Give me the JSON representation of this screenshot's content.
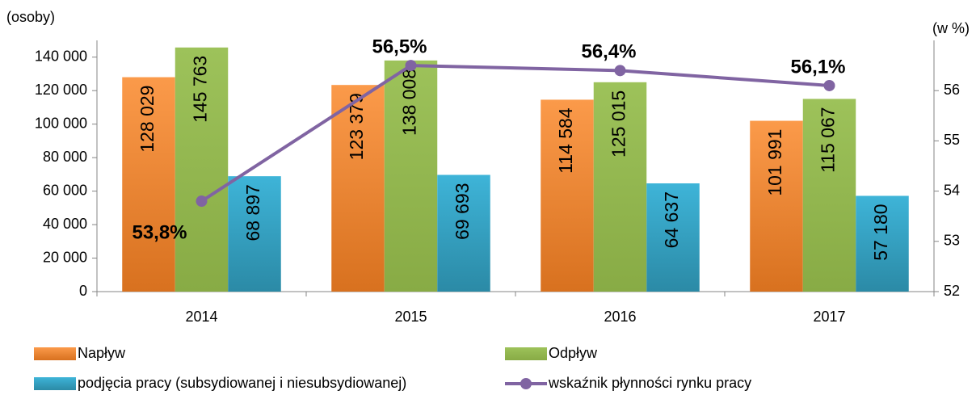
{
  "chart_data": {
    "type": "bar",
    "y_label": "(osoby)",
    "y2_label": "(w %)",
    "categories": [
      "2014",
      "2015",
      "2016",
      "2017"
    ],
    "series": [
      {
        "name": "Napływ",
        "color": "#f79646",
        "values": [
          128029,
          123379,
          114584,
          101991
        ],
        "value_labels": [
          "128 029",
          "123 379",
          "114 584",
          "101 991"
        ]
      },
      {
        "name": "Odpływ",
        "color": "#9bbb59",
        "values": [
          145763,
          138008,
          125015,
          115067
        ],
        "value_labels": [
          "145 763",
          "138 008",
          "125 015",
          "115 067"
        ]
      },
      {
        "name": "podjęcia pracy (subsydiowanej i niesubsydiowanej)",
        "color": "#4bacc6",
        "values": [
          68897,
          69693,
          64637,
          57180
        ],
        "value_labels": [
          "68 897",
          "69 693",
          "64 637",
          "57 180"
        ]
      },
      {
        "name": "wskaźnik płynności rynku pracy",
        "color": "#8064a2",
        "type": "line",
        "axis": "y2",
        "values": [
          53.8,
          56.5,
          56.4,
          56.1
        ],
        "value_labels": [
          "53,8%",
          "56,5%",
          "56,4%",
          "56,1%"
        ]
      }
    ],
    "ylim": [
      0,
      150000
    ],
    "yticks": [
      0,
      {
        "value": 20000,
        "label": "20 000"
      },
      {
        "value": 40000,
        "label": "40 000"
      },
      {
        "value": 60000,
        "label": "60 000"
      },
      {
        "value": 80000,
        "label": "80 000"
      },
      {
        "value": 100000,
        "label": "100 000"
      },
      {
        "value": 120000,
        "label": "120 000"
      },
      {
        "value": 140000,
        "label": "140 000"
      }
    ],
    "y2lim": [
      52,
      57
    ],
    "y2ticks": [
      52,
      53,
      54,
      55,
      56
    ],
    "grid": false
  }
}
